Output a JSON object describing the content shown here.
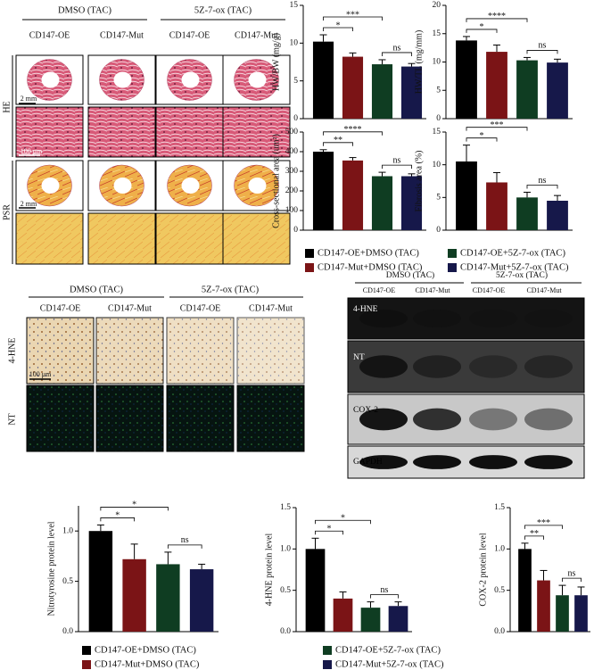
{
  "top_panel": {
    "groups": [
      "DMSO (TAC)",
      "5Z-7-ox (TAC)"
    ],
    "columns": [
      "CD147-OE",
      "CD147-Mut",
      "CD147-OE",
      "CD147-Mut"
    ],
    "rows": [
      "HE",
      "PSR"
    ],
    "scale_bars": [
      "2 mm",
      "100 μm",
      "2 mm"
    ]
  },
  "ihc_panel": {
    "groups": [
      "DMSO (TAC)",
      "5Z-7-ox (TAC)"
    ],
    "columns": [
      "CD147-OE",
      "CD147-Mut",
      "CD147-OE",
      "CD147-Mut"
    ],
    "rows": [
      "4-HNE",
      "NT"
    ],
    "scale_bar": "100 μm"
  },
  "blot": {
    "groups": [
      "DMSO (TAC)",
      "5Z-7-ox (TAC)"
    ],
    "columns": [
      "CD147-OE",
      "CD147-Mut",
      "CD147-OE",
      "CD147-Mut"
    ],
    "rows": [
      "4-HNE",
      "NT",
      "COX-2",
      "GAPDH"
    ]
  },
  "legend_top": [
    {
      "name": "CD147-OE+DMSO (TAC)",
      "color": "#000000"
    },
    {
      "name": "CD147-Mut+DMSO (TAC)",
      "color": "#7b1416"
    },
    {
      "name": "CD147-OE+5Z-7-ox (TAC)",
      "color": "#0f3d22"
    },
    {
      "name": "CD147-Mut+5Z-7-ox (TAC)",
      "color": "#16184a"
    }
  ],
  "legend_bottom": [
    {
      "name": "CD147-OE+DMSO (TAC)",
      "color": "#000000"
    },
    {
      "name": "CD147-Mut+DMSO (TAC)",
      "color": "#7b1416"
    },
    {
      "name": "CD147-OE+5Z-7-ox (TAC)",
      "color": "#0f3d22"
    },
    {
      "name": "CD147-Mut+5Z-7-ox (TAC)",
      "color": "#16184a"
    }
  ],
  "chart_data": [
    {
      "type": "bar",
      "ylabel": "HW/BW (mg/g)",
      "values": [
        10.2,
        8.2,
        7.2,
        6.9
      ],
      "errors": [
        0.9,
        0.5,
        0.6,
        0.4
      ],
      "colors": [
        "#000000",
        "#7b1416",
        "#0f3d22",
        "#16184a"
      ],
      "ylim": [
        0,
        15
      ],
      "yticks": [
        0,
        5,
        10,
        15
      ],
      "annotations": [
        {
          "from": 0,
          "to": 1,
          "label": "*"
        },
        {
          "from": 0,
          "to": 2,
          "label": "***"
        },
        {
          "from": 2,
          "to": 3,
          "label": "ns"
        }
      ]
    },
    {
      "type": "bar",
      "ylabel": "HW/TL (mg/mm)",
      "values": [
        13.8,
        11.8,
        10.3,
        9.9
      ],
      "errors": [
        0.7,
        1.2,
        0.5,
        0.6
      ],
      "colors": [
        "#000000",
        "#7b1416",
        "#0f3d22",
        "#16184a"
      ],
      "ylim": [
        0,
        20
      ],
      "yticks": [
        0,
        5,
        10,
        15,
        20
      ],
      "annotations": [
        {
          "from": 0,
          "to": 1,
          "label": "*"
        },
        {
          "from": 0,
          "to": 2,
          "label": "****"
        },
        {
          "from": 2,
          "to": 3,
          "label": "ns"
        }
      ]
    },
    {
      "type": "bar",
      "ylabel": "Cross-sectional area (um²)",
      "values": [
        400,
        355,
        275,
        275
      ],
      "errors": [
        10,
        15,
        20,
        12
      ],
      "colors": [
        "#000000",
        "#7b1416",
        "#0f3d22",
        "#16184a"
      ],
      "ylim": [
        0,
        500
      ],
      "yticks": [
        0,
        100,
        200,
        300,
        400,
        500
      ],
      "annotations": [
        {
          "from": 0,
          "to": 1,
          "label": "**"
        },
        {
          "from": 0,
          "to": 2,
          "label": "****"
        },
        {
          "from": 2,
          "to": 3,
          "label": "ns"
        }
      ]
    },
    {
      "type": "bar",
      "ylabel": "Fibrosis area (%)",
      "values": [
        10.5,
        7.3,
        5.0,
        4.5
      ],
      "errors": [
        2.5,
        1.5,
        0.8,
        0.8
      ],
      "colors": [
        "#000000",
        "#7b1416",
        "#0f3d22",
        "#16184a"
      ],
      "ylim": [
        0,
        15
      ],
      "yticks": [
        0,
        5,
        10,
        15
      ],
      "annotations": [
        {
          "from": 0,
          "to": 1,
          "label": "*"
        },
        {
          "from": 0,
          "to": 2,
          "label": "***"
        },
        {
          "from": 2,
          "to": 3,
          "label": "ns"
        }
      ]
    },
    {
      "type": "bar",
      "ylabel": "Nitrotyrosine protein level",
      "values": [
        1.0,
        0.72,
        0.67,
        0.62
      ],
      "errors": [
        0.06,
        0.15,
        0.12,
        0.05
      ],
      "colors": [
        "#000000",
        "#7b1416",
        "#0f3d22",
        "#16184a"
      ],
      "ylim": [
        0,
        1.25
      ],
      "yticks": [
        {
          "value": 0,
          "label": "0.0"
        },
        0.5,
        {
          "value": 1,
          "label": "1.0"
        }
      ],
      "annotations": [
        {
          "from": 0,
          "to": 1,
          "label": "*"
        },
        {
          "from": 0,
          "to": 2,
          "label": "*"
        },
        {
          "from": 2,
          "to": 3,
          "label": "ns"
        }
      ]
    },
    {
      "type": "bar",
      "ylabel": "4-HNE protein level",
      "values": [
        1.0,
        0.4,
        0.29,
        0.31
      ],
      "errors": [
        0.13,
        0.08,
        0.07,
        0.05
      ],
      "colors": [
        "#000000",
        "#7b1416",
        "#0f3d22",
        "#16184a"
      ],
      "ylim": [
        0,
        1.5
      ],
      "yticks": [
        {
          "value": 0,
          "label": "0.0"
        },
        0.5,
        {
          "value": 1,
          "label": "1.0"
        },
        1.5
      ],
      "annotations": [
        {
          "from": 0,
          "to": 1,
          "label": "*"
        },
        {
          "from": 0,
          "to": 2,
          "label": "*"
        },
        {
          "from": 2,
          "to": 3,
          "label": "ns"
        }
      ]
    },
    {
      "type": "bar",
      "ylabel": "COX-2 protein level",
      "values": [
        1.0,
        0.62,
        0.44,
        0.44
      ],
      "errors": [
        0.07,
        0.12,
        0.12,
        0.1
      ],
      "colors": [
        "#000000",
        "#7b1416",
        "#0f3d22",
        "#16184a"
      ],
      "ylim": [
        0,
        1.5
      ],
      "yticks": [
        {
          "value": 0,
          "label": "0.0"
        },
        0.5,
        {
          "value": 1,
          "label": "1.0"
        },
        1.5
      ],
      "annotations": [
        {
          "from": 0,
          "to": 1,
          "label": "**"
        },
        {
          "from": 0,
          "to": 2,
          "label": "***"
        },
        {
          "from": 2,
          "to": 3,
          "label": "ns"
        }
      ]
    }
  ]
}
